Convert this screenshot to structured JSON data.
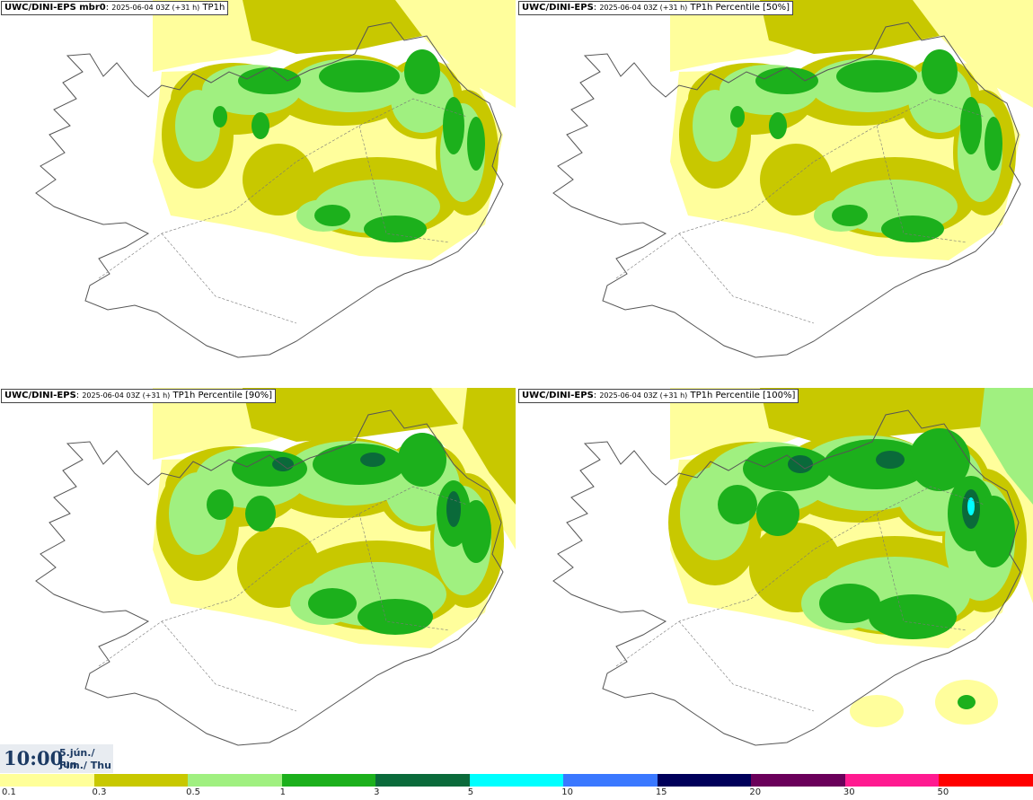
{
  "panels": [
    {
      "title_bold": "UWC/DINI-EPS mbr0",
      "title_time": "2025-06-04 03Z (+31 h)",
      "title_field": "TP1h"
    },
    {
      "title_bold": "UWC/DINI-EPS",
      "title_time": "2025-06-04 03Z (+31 h)",
      "title_field": "TP1h Percentile [50%]"
    },
    {
      "title_bold": "UWC/DINI-EPS",
      "title_time": "2025-06-04 03Z (+31 h)",
      "title_field": "TP1h Percentile [90%]"
    },
    {
      "title_bold": "UWC/DINI-EPS",
      "title_time": "2025-06-04 03Z (+31 h)",
      "title_field": "TP1h Percentile [100%]"
    }
  ],
  "valid_time": {
    "clock": "10:00",
    "date_line": "5.jún./ Jun",
    "day_line": "Fim./ Thu"
  },
  "colorbar": {
    "labels": [
      "0.1",
      "0.3",
      "0.5",
      "1",
      "3",
      "5",
      "10",
      "15",
      "20",
      "30",
      "50"
    ],
    "colors": [
      "#ffff99",
      "#c8c800",
      "#a0f080",
      "#1cb01c",
      "#0a6a3a",
      "#00ffff",
      "#3a78ff",
      "#00005a",
      "#6a005a",
      "#ff1a90",
      "#ff0000"
    ]
  },
  "map_colors": {
    "yellow": "#fffe9c",
    "olive": "#c8c800",
    "light_green": "#a0f080",
    "green": "#1cb01c",
    "dark_green": "#0a6a3a",
    "cyan": "#00ffff",
    "coast": "#555555"
  }
}
